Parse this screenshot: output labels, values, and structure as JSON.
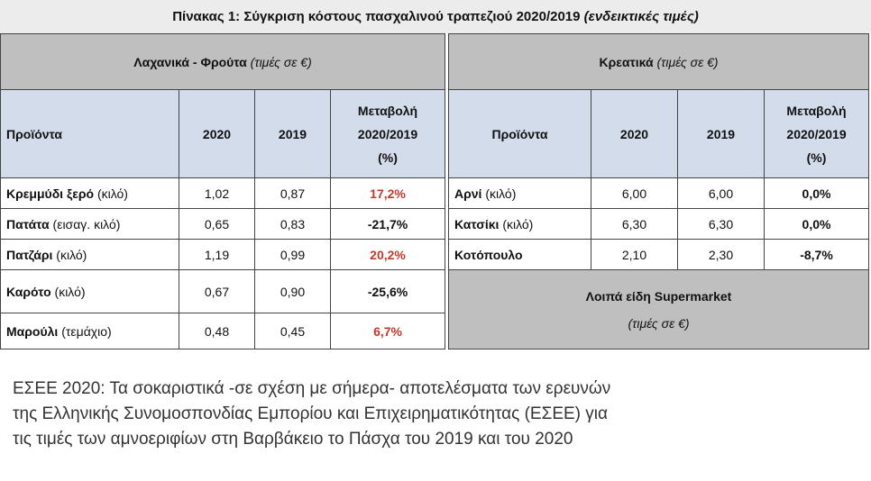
{
  "title": {
    "main": "Πίνακας 1: Σύγκριση κόστους πασχαλινού τραπεζιού 2020/2019",
    "note": "(ενδεικτικές τιμές)"
  },
  "left": {
    "section": "Λαχανικά - Φρούτα",
    "unit": "(τιμές σε €)",
    "headers": {
      "product": "Προϊόντα",
      "y2020": "2020",
      "y2019": "2019",
      "change_l1": "Μεταβολή",
      "change_l2": "2020/2019",
      "change_l3": "(%)"
    },
    "rows": [
      {
        "name": "Κρεμμύδι ξερό",
        "unit": "(κιλό)",
        "v2020": "1,02",
        "v2019": "0,87",
        "change": "17,2%"
      },
      {
        "name": "Πατάτα",
        "unit": "(εισαγ. κιλό)",
        "v2020": "0,65",
        "v2019": "0,83",
        "change": "-21,7%"
      },
      {
        "name": "Πατζάρι",
        "unit": "(κιλό)",
        "v2020": "1,19",
        "v2019": "0,99",
        "change": "20,2%"
      },
      {
        "name": "Καρότο",
        "unit": "(κιλό)",
        "v2020": "0,67",
        "v2019": "0,90",
        "change": "-25,6%"
      },
      {
        "name": "Μαρούλι",
        "unit": "(τεμάχιο)",
        "v2020": "0,48",
        "v2019": "0,45",
        "change": "6,7%"
      }
    ]
  },
  "right": {
    "section": "Κρεατικά",
    "unit": "(τιμές σε €)",
    "headers": {
      "product": "Προϊόντα",
      "y2020": "2020",
      "y2019": "2019",
      "change_l1": "Μεταβολή",
      "change_l2": "2020/2019",
      "change_l3": "(%)"
    },
    "rows": [
      {
        "name": "Αρνί",
        "unit": "(κιλό)",
        "v2020": "6,00",
        "v2019": "6,00",
        "change": "0,0%"
      },
      {
        "name": "Κατσίκι",
        "unit": "(κιλό)",
        "v2020": "6,30",
        "v2019": "6,30",
        "change": "0,0%"
      },
      {
        "name": "Κοτόπουλο",
        "unit": "",
        "v2020": "2,10",
        "v2019": "2,30",
        "change": "-8,7%"
      }
    ],
    "supermarket": {
      "title": "Λοιπά είδη Supermarket",
      "unit": "(τιμές σε €)"
    }
  },
  "caption": [
    "ΕΣΕΕ 2020: Τα σοκαριστικά -σε σχέση με σήμερα- αποτελέσματα των ερευνών",
    "της Ελληνικής Συνομοσπονδίας Εμπορίου και Επιχειρηματικότητας (ΕΣΕΕ) για",
    "τις τιμές των αμνοεριφίων στη Βαρβάκειο το Πάσχα του 2019 και του 2020"
  ],
  "colors": {
    "header_blue": "#d3dceb",
    "section_gray": "#bfbfbf",
    "positive_change": "#c0392b"
  }
}
